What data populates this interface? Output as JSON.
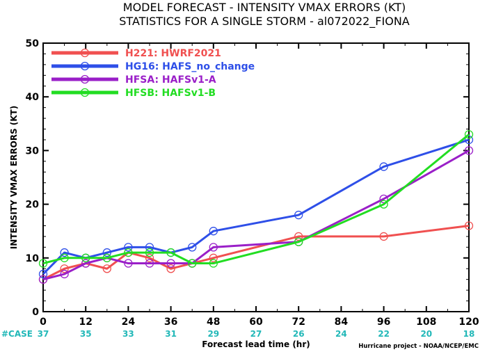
{
  "title_line1": "MODEL FORECAST - INTENSITY VMAX ERRORS (KT)",
  "title_line2": "STATISTICS FOR A SINGLE STORM - al072022_FIONA",
  "credit": "Hurricane project - NOAA/NCEP/EMC",
  "case_label": "#CASE",
  "colors": {
    "case": "#22b8b8"
  },
  "chart_data": {
    "type": "line",
    "xlabel": "Forecast lead time (hr)",
    "ylabel": "INTENSITY VMAX ERRORS (KT)",
    "xlim": [
      0,
      120
    ],
    "ylim": [
      0,
      50
    ],
    "x_ticks": [
      0,
      12,
      24,
      36,
      48,
      60,
      72,
      84,
      96,
      108,
      120
    ],
    "y_ticks": [
      0,
      10,
      20,
      30,
      40,
      50
    ],
    "grid": false,
    "legend_position": "top-left",
    "cases": [
      {
        "x": 0,
        "n": "37"
      },
      {
        "x": 12,
        "n": "35"
      },
      {
        "x": 24,
        "n": "33"
      },
      {
        "x": 36,
        "n": "31"
      },
      {
        "x": 48,
        "n": "29"
      },
      {
        "x": 60,
        "n": "27"
      },
      {
        "x": 72,
        "n": "26"
      },
      {
        "x": 84,
        "n": "24"
      },
      {
        "x": 96,
        "n": "22"
      },
      {
        "x": 108,
        "n": "20"
      },
      {
        "x": 120,
        "n": "18"
      }
    ],
    "series": [
      {
        "name": "H221: HWRF2021",
        "color": "#f05050",
        "x": [
          0,
          6,
          12,
          18,
          24,
          30,
          36,
          42,
          48,
          72,
          96,
          120
        ],
        "y": [
          6,
          8,
          9,
          8,
          11,
          10,
          8,
          9,
          10,
          14,
          14,
          16
        ]
      },
      {
        "name": "HG16: HAFS_no_change",
        "color": "#2e4fe8",
        "x": [
          0,
          6,
          12,
          18,
          24,
          30,
          36,
          42,
          48,
          72,
          96,
          120
        ],
        "y": [
          7,
          11,
          10,
          11,
          12,
          12,
          11,
          12,
          15,
          18,
          27,
          32
        ]
      },
      {
        "name": "HFSA: HAFSv1-A",
        "color": "#9a1fc8",
        "x": [
          0,
          6,
          12,
          18,
          24,
          30,
          36,
          42,
          48,
          72,
          96,
          120
        ],
        "y": [
          6,
          7,
          9,
          10,
          9,
          9,
          9,
          9,
          12,
          13,
          21,
          30
        ]
      },
      {
        "name": "HFSB: HAFSv1-B",
        "color": "#22dd22",
        "x": [
          0,
          6,
          12,
          18,
          24,
          30,
          36,
          42,
          48,
          72,
          96,
          120
        ],
        "y": [
          9,
          10,
          10,
          10,
          11,
          11,
          11,
          9,
          9,
          13,
          20,
          33
        ]
      }
    ]
  }
}
